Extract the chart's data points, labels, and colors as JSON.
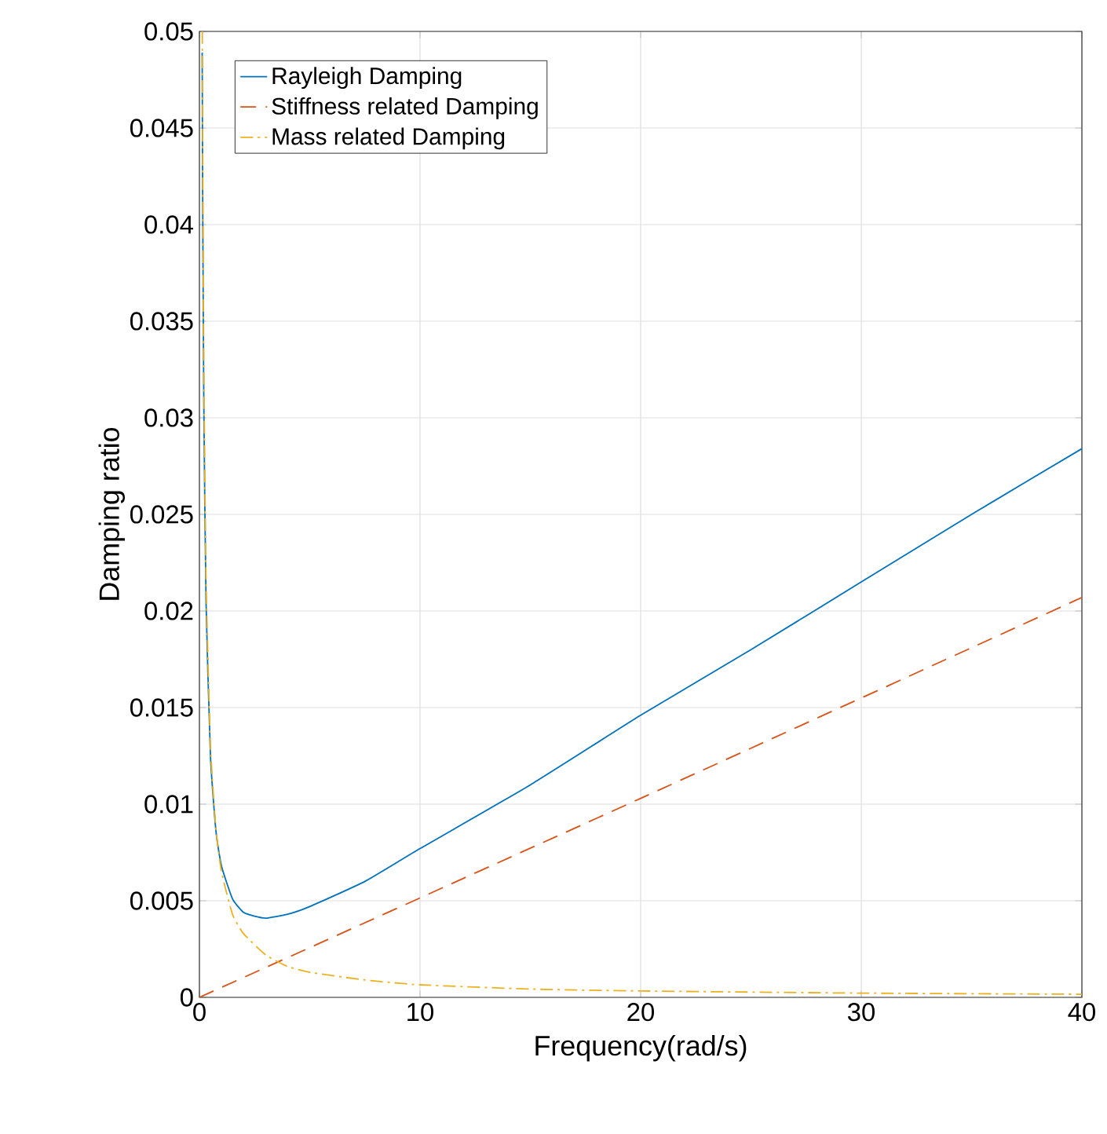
{
  "chart_data": {
    "type": "line",
    "xlabel": "Frequency(rad/s)",
    "ylabel": "Damping ratio",
    "xlim": [
      0,
      40
    ],
    "ylim": [
      0,
      0.05
    ],
    "xticks": [
      0,
      10,
      20,
      30,
      40
    ],
    "yticks": [
      0,
      0.005,
      0.01,
      0.015,
      0.02,
      0.025,
      0.03,
      0.035,
      0.04,
      0.045,
      0.05
    ],
    "grid": true,
    "legend": "top left",
    "series": [
      {
        "name": "Rayleigh Damping",
        "color": "#0072bd",
        "line_style": "solid",
        "x": [
          0.125,
          0.15,
          0.2,
          0.3,
          0.5,
          0.75,
          1,
          1.5,
          2,
          2.5,
          3,
          4,
          5,
          7.5,
          10,
          15,
          20,
          25,
          30,
          35,
          40
        ],
        "values": [
          0.0489,
          0.0408,
          0.0306,
          0.0205,
          0.0125,
          0.0086,
          0.0068,
          0.0051,
          0.0044,
          0.0042,
          0.0041,
          0.0043,
          0.0047,
          0.006,
          0.0077,
          0.011,
          0.0146,
          0.018,
          0.0215,
          0.025,
          0.0284
        ]
      },
      {
        "name": "Stiffness related Damping",
        "color": "#d95319",
        "line_style": "dashed",
        "x": [
          0,
          20,
          40
        ],
        "values": [
          0,
          0.0103,
          0.0207
        ]
      },
      {
        "name": "Mass related Damping",
        "color": "#edb120",
        "line_style": "dashdot",
        "x": [
          0.13,
          0.15,
          0.2,
          0.3,
          0.5,
          0.75,
          1,
          1.5,
          2,
          3,
          4,
          5,
          7.5,
          10,
          15,
          20,
          30,
          40
        ],
        "values": [
          0.05,
          0.0433,
          0.0325,
          0.0217,
          0.013,
          0.0087,
          0.0065,
          0.0043,
          0.0033,
          0.0022,
          0.0016,
          0.0013,
          0.0009,
          0.00065,
          0.00043,
          0.00033,
          0.00022,
          0.00016
        ]
      }
    ]
  }
}
